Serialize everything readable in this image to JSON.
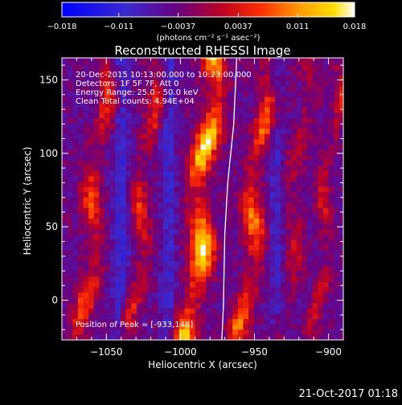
{
  "chart_data": {
    "type": "heatmap",
    "title": "Reconstructed RHESSI Image",
    "xlabel": "Heliocentric X (arcsec)",
    "ylabel": "Heliocentric Y (arcsec)",
    "xlim": [
      -1080,
      -890
    ],
    "ylim": [
      -27,
      165
    ],
    "x_ticks": [
      -1050,
      -1000,
      -950,
      -900
    ],
    "x_tick_labels": [
      "−1050",
      "−1000",
      "−950",
      "−900"
    ],
    "y_ticks": [
      0,
      50,
      100,
      150
    ],
    "y_tick_labels": [
      "0",
      "50",
      "100",
      "150"
    ],
    "colorbar": {
      "min": -0.018,
      "max": 0.018,
      "ticks": [
        -0.018,
        -0.011,
        -0.0037,
        0.0037,
        0.011,
        0.018
      ],
      "tick_labels": [
        "−0.018",
        "−0.011",
        "−0.0037",
        "0.0037",
        "0.011",
        "0.018"
      ],
      "unit_label": "(photons cm⁻² s⁻¹ asec⁻²)",
      "colors": [
        "#0000ff",
        "#4b00aa",
        "#7a007a",
        "#ff0000",
        "#ffa500",
        "#ffffff"
      ]
    },
    "info": [
      "20-Dec-2015 10:13:00.000 to 10:23:00.000",
      "Detectors: 1F 5F 7F, Att 0",
      "Energy Range: 25.0 - 50.0 keV",
      "Clean    Total counts: 4.94E+04"
    ],
    "peak_label": "Position of Peak = [-933,148]",
    "limb_curve": [
      [
        -962,
        165
      ],
      [
        -964,
        120
      ],
      [
        -968,
        80
      ],
      [
        -970,
        45
      ],
      [
        -971,
        -5
      ],
      [
        -972,
        -27
      ]
    ],
    "grid": false
  },
  "timestamp": "21-Oct-2017 01:18"
}
